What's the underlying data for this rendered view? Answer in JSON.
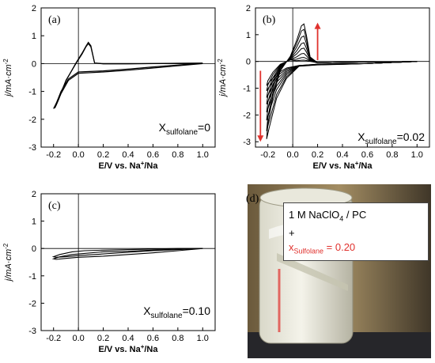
{
  "panels": [
    {
      "label": "(a)",
      "annotation_main": "X",
      "annotation_sub": "sulfolane",
      "annotation_value": "=0"
    },
    {
      "label": "(b)",
      "annotation_main": "X",
      "annotation_sub": "sulfolane",
      "annotation_value": "=0.02"
    },
    {
      "label": "(c)",
      "annotation_main": "X",
      "annotation_sub": "sulfolane",
      "annotation_value": "=0.10"
    },
    {
      "label": "(d)"
    }
  ],
  "ylabel": "j/mA·cm",
  "ylabel_sup": "-2",
  "xlabel": "E/V vs. Na",
  "xlabel_sup": "+",
  "xlabel_tail": "/Na",
  "photo_caption": {
    "line1_prefix": "1 M NaClO",
    "line1_sub": "4",
    "line1_suffix": " / PC",
    "plus": "+",
    "line3_main": "x",
    "line3_sub": "Sulfolane",
    "line3_value": " = 0.20"
  },
  "colors": {
    "curve": "#000000",
    "arrow": "#e0312d",
    "caption_red": "#e0312d",
    "axis": "#000000"
  },
  "chart_data": [
    {
      "type": "line",
      "panel": "(a)",
      "xlabel": "E/V vs. Na+/Na",
      "ylabel": "j/mA·cm-2",
      "xlim": [
        -0.3,
        1.1
      ],
      "ylim": [
        -3,
        2
      ],
      "xticks": [
        "-0.2",
        "0.0",
        "0.2",
        "0.4",
        "0.6",
        "0.8",
        "1.0"
      ],
      "yticks": [
        "2",
        "1",
        "0",
        "-1",
        "-2",
        "-3"
      ],
      "series": [
        {
          "x": [
            1.0,
            0.8,
            0.6,
            0.4,
            0.2,
            0.0,
            -0.08,
            -0.14,
            -0.18,
            -0.19,
            -0.16,
            -0.1,
            -0.02,
            0.03,
            0.06,
            0.08,
            0.1,
            0.13,
            0.2,
            0.4,
            0.6,
            0.8,
            1.0
          ],
          "y": [
            0.02,
            -0.05,
            -0.12,
            -0.2,
            -0.26,
            -0.3,
            -0.55,
            -1.0,
            -1.45,
            -1.6,
            -1.3,
            -0.6,
            0.0,
            0.35,
            0.6,
            0.72,
            0.6,
            0.02,
            0.0,
            0.0,
            0.0,
            0.01,
            0.02
          ]
        },
        {
          "x": [
            1.0,
            0.8,
            0.6,
            0.4,
            0.2,
            0.0,
            -0.08,
            -0.14,
            -0.18,
            -0.2,
            -0.17,
            -0.1,
            -0.02,
            0.03,
            0.06,
            0.08,
            0.1,
            0.13,
            0.2,
            0.4,
            0.6,
            0.8,
            1.0
          ],
          "y": [
            0.0,
            -0.08,
            -0.16,
            -0.24,
            -0.3,
            -0.35,
            -0.6,
            -1.08,
            -1.5,
            -1.62,
            -1.35,
            -0.62,
            0.02,
            0.38,
            0.62,
            0.76,
            0.64,
            0.02,
            -0.01,
            -0.01,
            0.0,
            0.0,
            0.0
          ]
        }
      ]
    },
    {
      "type": "line",
      "panel": "(b)",
      "xlabel": "E/V vs. Na+/Na",
      "ylabel": "j/mA·cm-2",
      "xlim": [
        -0.3,
        1.1
      ],
      "ylim": [
        -3.2,
        2
      ],
      "xticks": [
        "-0.2",
        "0.0",
        "0.2",
        "0.4",
        "0.6",
        "0.8",
        "1.0"
      ],
      "yticks": [
        "2",
        "1",
        "0",
        "-1",
        "-2",
        "-3"
      ],
      "peak_currents": [
        0.05,
        0.15,
        0.3,
        0.5,
        0.7,
        0.95,
        1.2,
        1.4
      ],
      "minimum_currents": [
        -0.9,
        -1.1,
        -1.35,
        -1.6,
        -1.9,
        -2.2,
        -2.6,
        -2.9
      ]
    },
    {
      "type": "line",
      "panel": "(c)",
      "xlabel": "E/V vs. Na+/Na",
      "ylabel": "j/mA·cm-2",
      "xlim": [
        -0.3,
        1.1
      ],
      "ylim": [
        -3,
        2
      ],
      "xticks": [
        "-0.2",
        "0.0",
        "0.2",
        "0.4",
        "0.6",
        "0.8",
        "1.0"
      ],
      "yticks": [
        "2",
        "1",
        "0",
        "-1",
        "-2",
        "-3"
      ],
      "series": [
        {
          "x": [
            1.0,
            0.8,
            0.6,
            0.4,
            0.2,
            0.0,
            -0.1,
            -0.18,
            -0.2,
            -0.15,
            -0.05,
            0.05,
            0.2,
            0.4,
            0.6,
            0.8,
            1.0
          ],
          "y": [
            0.0,
            -0.08,
            -0.16,
            -0.22,
            -0.28,
            -0.32,
            -0.36,
            -0.4,
            -0.38,
            -0.3,
            -0.22,
            -0.18,
            -0.12,
            -0.1,
            -0.06,
            -0.02,
            0.0
          ]
        },
        {
          "x": [
            1.0,
            0.8,
            0.6,
            0.4,
            0.2,
            0.0,
            -0.1,
            -0.18,
            -0.2,
            -0.15,
            -0.05,
            0.05,
            0.2,
            0.4,
            0.6,
            0.8,
            1.0
          ],
          "y": [
            0.0,
            -0.04,
            -0.08,
            -0.14,
            -0.2,
            -0.26,
            -0.3,
            -0.32,
            -0.3,
            -0.22,
            -0.12,
            -0.08,
            -0.06,
            -0.04,
            -0.02,
            0.0,
            0.0
          ]
        }
      ]
    }
  ]
}
